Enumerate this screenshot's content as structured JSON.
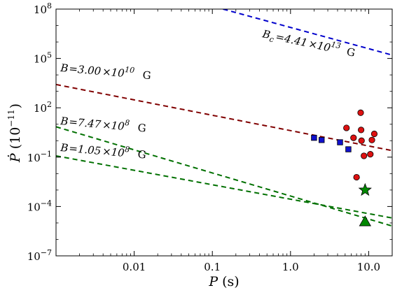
{
  "chart_data": {
    "type": "scatter",
    "x_scale": "log",
    "y_scale": "log",
    "xlim": [
      0.001,
      20
    ],
    "ylim": [
      1e-07,
      100000000.0
    ],
    "xlabel_var": "P",
    "xlabel_unit": "(s)",
    "ylabel_var": "Ṗ",
    "ylabel_unit_open": "(10",
    "ylabel_unit_exp": "−11",
    "ylabel_unit_close": ")",
    "x_ticks": [
      {
        "value": 0.01,
        "label": "0.01"
      },
      {
        "value": 0.1,
        "label": "0.1"
      },
      {
        "value": 1,
        "label": "1.0"
      },
      {
        "value": 10,
        "label": "10.0"
      }
    ],
    "y_ticks": [
      {
        "value": 1e-07,
        "base": "10",
        "exp": "−7"
      },
      {
        "value": 0.0001,
        "base": "10",
        "exp": "−4"
      },
      {
        "value": 0.1,
        "base": "10",
        "exp": "−1"
      },
      {
        "value": 100.0,
        "base": "10",
        "exp": "2"
      },
      {
        "value": 100000.0,
        "base": "10",
        "exp": "5"
      },
      {
        "value": 100000000.0,
        "base": "10",
        "exp": "8"
      }
    ],
    "grid": false,
    "legend": "none",
    "lines": [
      {
        "id": "bc",
        "color": "#0000cc",
        "x": [
          0.137,
          20
        ],
        "y": [
          100000000.0,
          160000.0
        ]
      },
      {
        "id": "b1",
        "color": "#800000",
        "x": [
          0.001,
          20
        ],
        "y": [
          2600.0,
          0.25
        ]
      },
      {
        "id": "b2",
        "color": "#007000",
        "x": [
          0.001,
          20
        ],
        "y": [
          7.0,
          6.5e-06
        ]
      },
      {
        "id": "b3",
        "color": "#007000",
        "x": [
          0.001,
          20
        ],
        "y": [
          0.12,
          2e-05
        ]
      }
    ],
    "annotations": [
      {
        "id": "bc",
        "lhs": "B",
        "sub": "c",
        "mant": "=4.41",
        "times": "×10",
        "exp": "13",
        "unit": "G"
      },
      {
        "id": "b1",
        "lhs": "B",
        "sub": "",
        "mant": "=3.00",
        "times": "×10",
        "exp": "10",
        "unit": "G"
      },
      {
        "id": "b2",
        "lhs": "B",
        "sub": "",
        "mant": "=7.47",
        "times": "×10",
        "exp": "8",
        "unit": "G"
      },
      {
        "id": "b3",
        "lhs": "B",
        "sub": "",
        "mant": "=1.05",
        "times": "×10",
        "exp": "8",
        "unit": "G"
      }
    ],
    "series": [
      {
        "marker": "circle",
        "color": "#dd1111",
        "points": [
          {
            "x": 5.2,
            "y": 6.0
          },
          {
            "x": 6.4,
            "y": 1.5
          },
          {
            "x": 7.0,
            "y": 0.006
          },
          {
            "x": 7.9,
            "y": 50
          },
          {
            "x": 8.0,
            "y": 4.5
          },
          {
            "x": 8.1,
            "y": 1.0
          },
          {
            "x": 8.7,
            "y": 0.12
          },
          {
            "x": 10.5,
            "y": 0.15
          },
          {
            "x": 11.0,
            "y": 1.1
          },
          {
            "x": 11.8,
            "y": 2.6
          }
        ]
      },
      {
        "marker": "square",
        "color": "#1111cc",
        "points": [
          {
            "x": 2.0,
            "y": 1.5
          },
          {
            "x": 2.5,
            "y": 1.1
          },
          {
            "x": 4.3,
            "y": 0.8
          },
          {
            "x": 5.5,
            "y": 0.3
          }
        ]
      },
      {
        "marker": "star",
        "color": "#008800",
        "points": [
          {
            "x": 9.0,
            "y": 0.001
          }
        ]
      },
      {
        "marker": "triangle",
        "color": "#008800",
        "points": [
          {
            "x": 9.0,
            "y": 1.2e-05
          }
        ]
      }
    ]
  }
}
